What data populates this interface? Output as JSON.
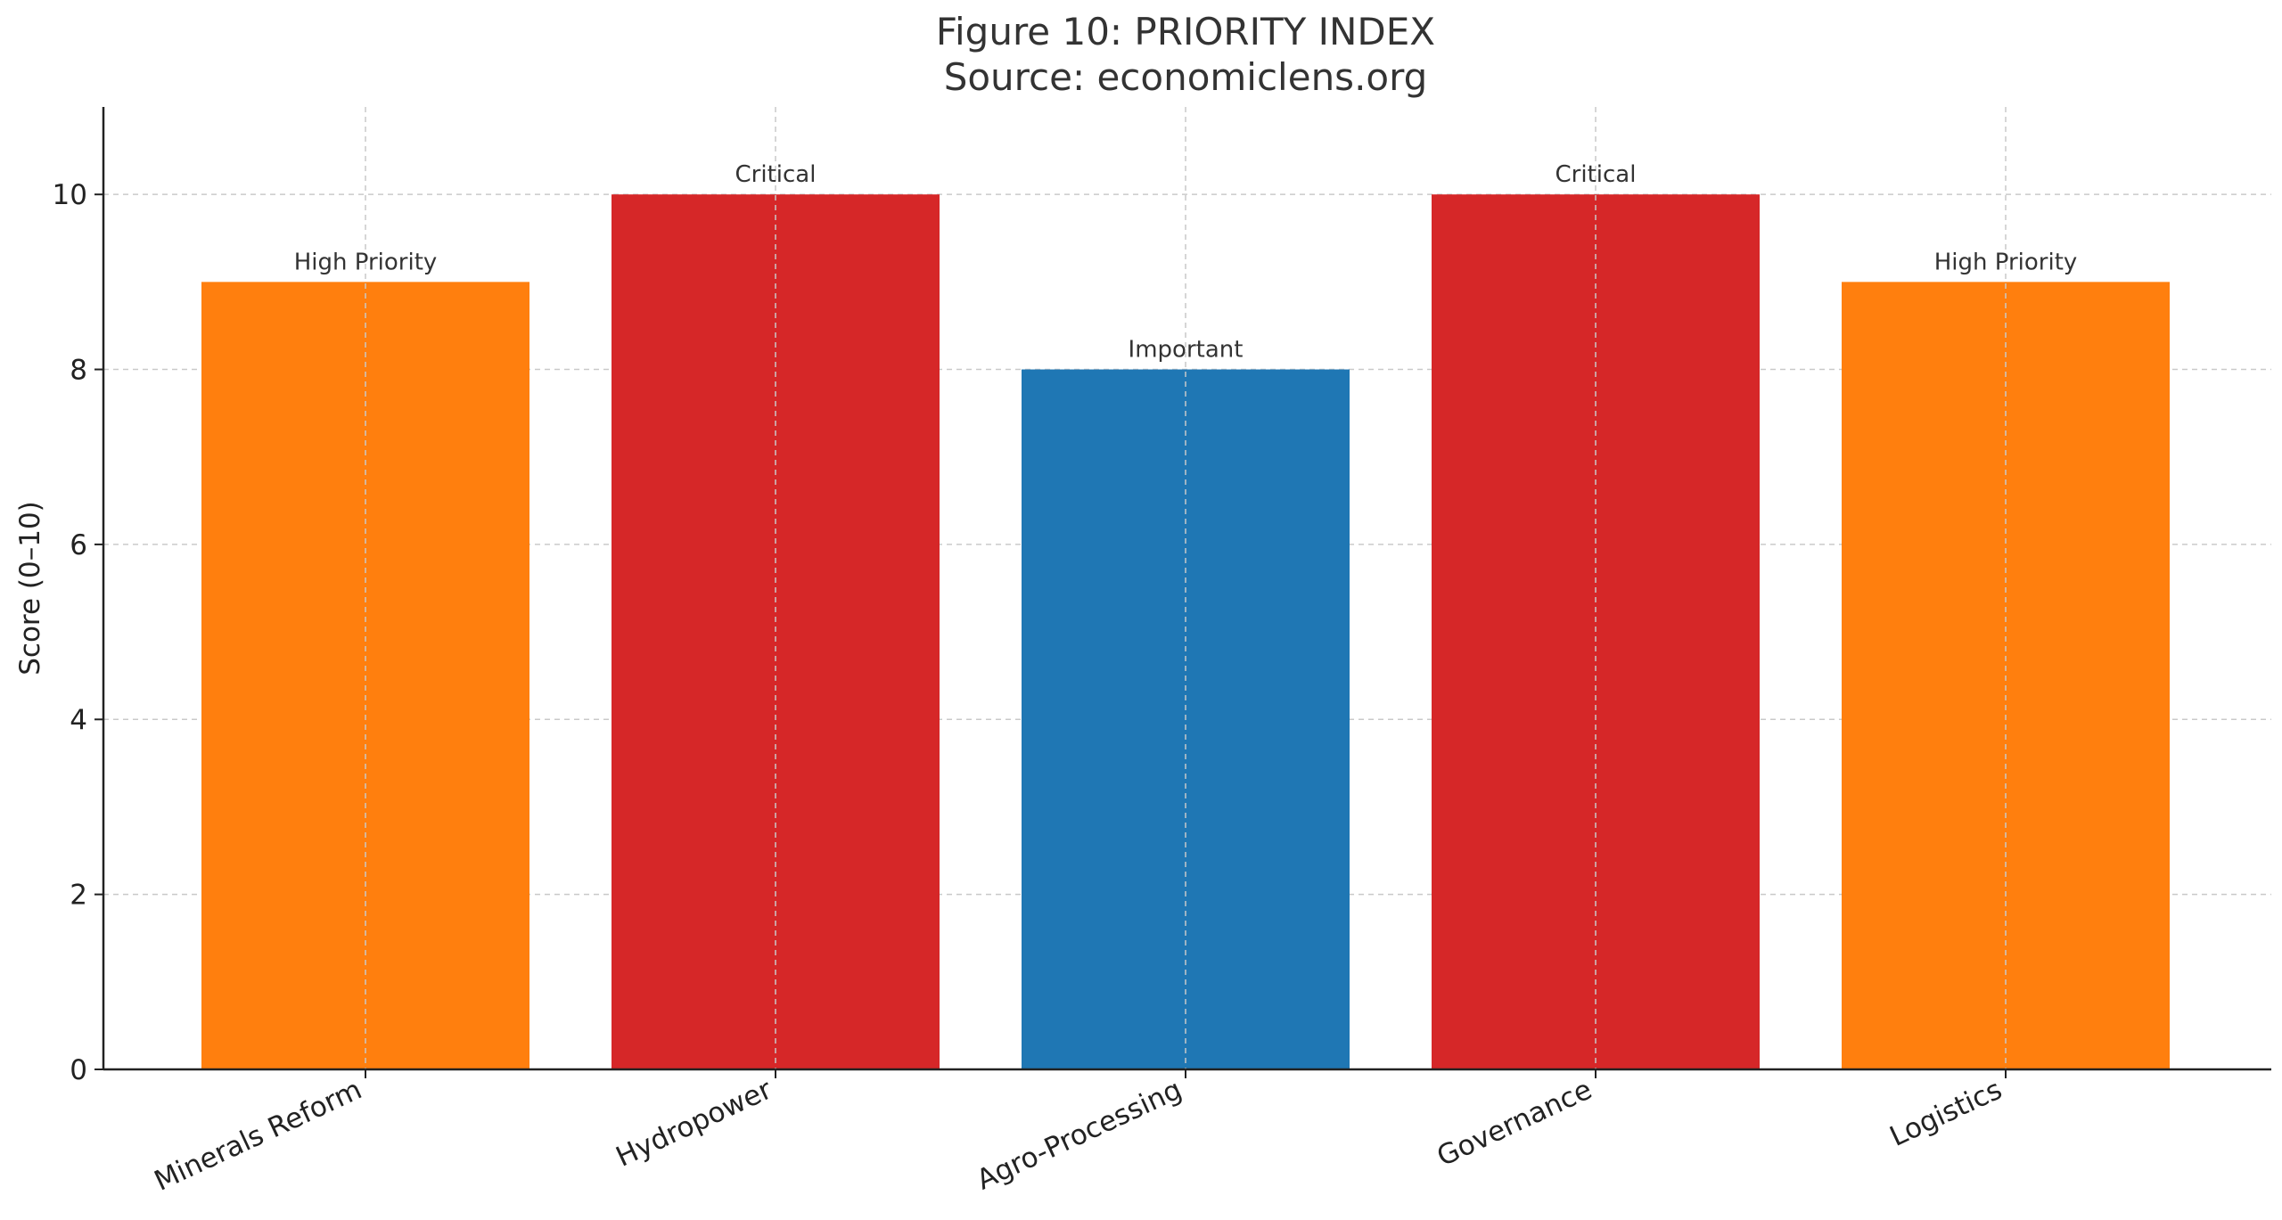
{
  "chart_data": {
    "type": "bar",
    "title": "Figure 10: PRIORITY INDEX",
    "subtitle": "Source: economiclens.org",
    "xlabel": "",
    "ylabel": "Score (0–10)",
    "ylim": [
      0,
      11
    ],
    "yticks": [
      0,
      2,
      4,
      6,
      8,
      10
    ],
    "grid": true,
    "categories": [
      "Minerals Reform",
      "Hydropower",
      "Agro-Processing",
      "Governance",
      "Logistics"
    ],
    "values": [
      9,
      10,
      8,
      10,
      9
    ],
    "annotations": [
      "High Priority",
      "Critical",
      "Important",
      "Critical",
      "High Priority"
    ],
    "colors": [
      "#ff7f0e",
      "#d62728",
      "#1f77b4",
      "#d62728",
      "#ff7f0e"
    ]
  }
}
